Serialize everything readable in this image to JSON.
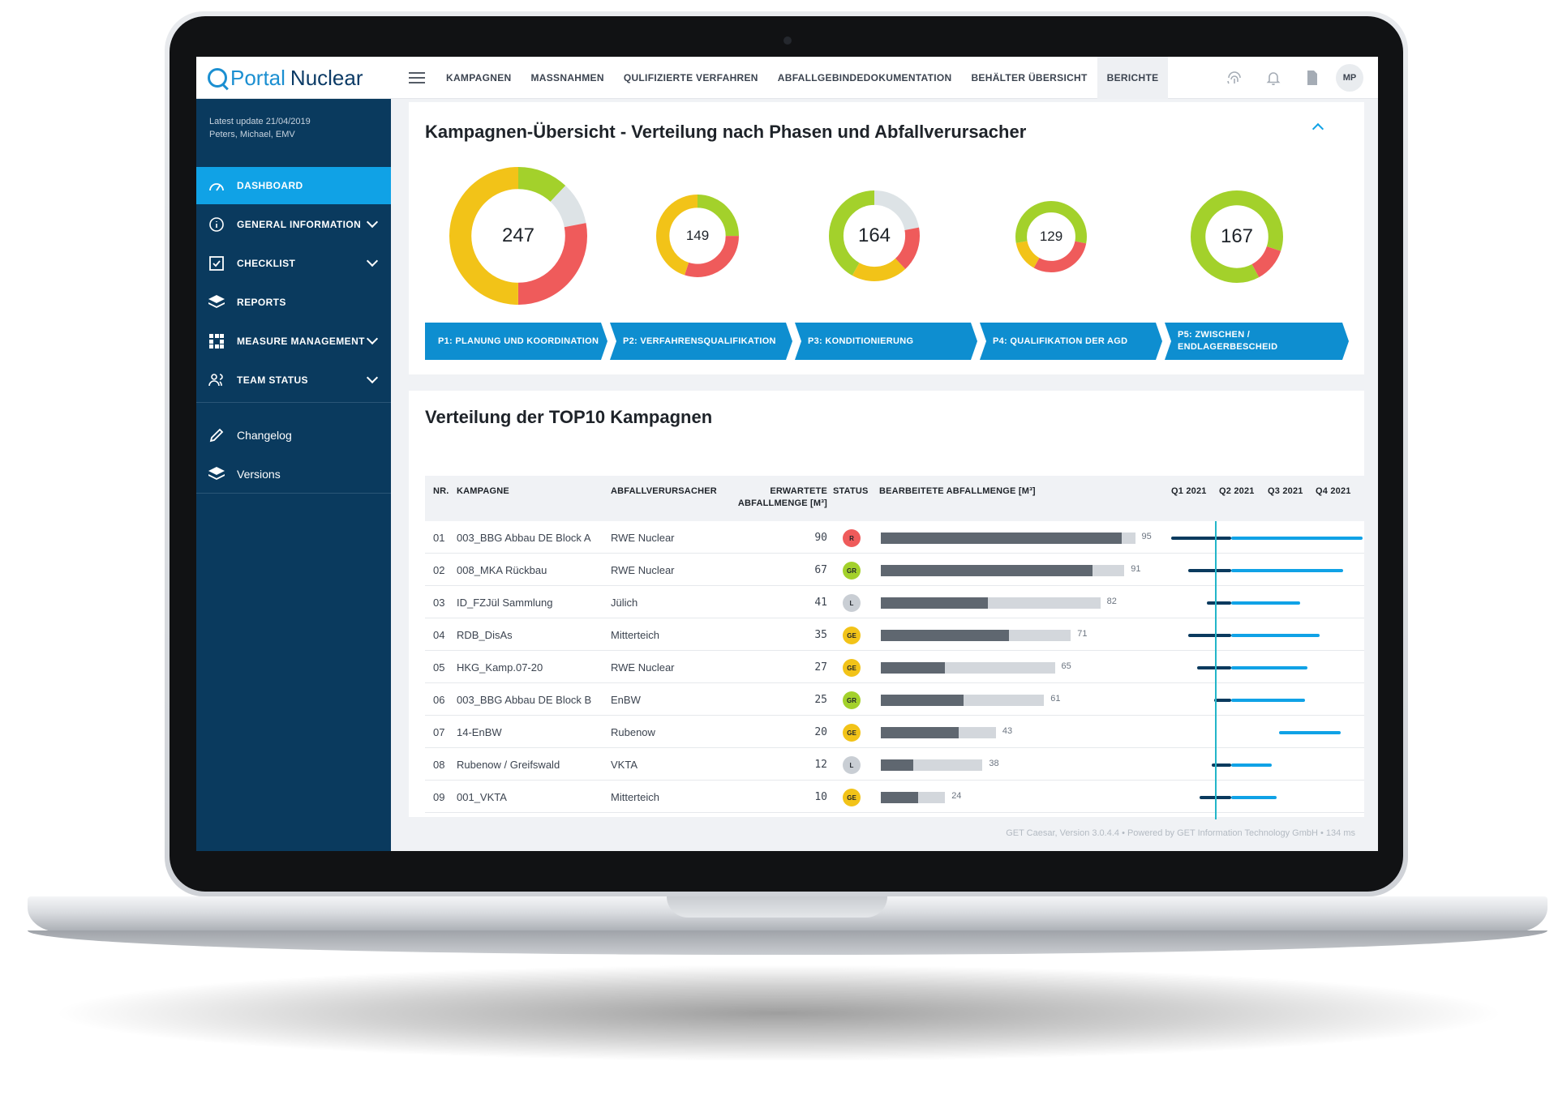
{
  "app": {
    "logo_a": "Portal",
    "logo_b": "Nuclear"
  },
  "nav": [
    {
      "label": "KAMPAGNEN"
    },
    {
      "label": "MASSNAHMEN"
    },
    {
      "label": "QULIFIZIERTE VERFAHREN"
    },
    {
      "label": "ABFALLGEBINDEDOKUMENTATION"
    },
    {
      "label": "BEHÄLTER ÜBERSICHT"
    },
    {
      "label": "BERICHTE"
    }
  ],
  "user": {
    "initials": "MP"
  },
  "sidebar": {
    "update_line": "Latest update 21/04/2019",
    "user_line": "Peters, Michael, EMV",
    "items": [
      {
        "label": "DASHBOARD",
        "icon": "gauge-icon"
      },
      {
        "label": "GENERAL INFORMATION",
        "icon": "info-icon"
      },
      {
        "label": "CHECKLIST",
        "icon": "checkbox-icon"
      },
      {
        "label": "REPORTS",
        "icon": "layers-icon"
      },
      {
        "label": "MEASURE MANAGEMENT",
        "icon": "grid-icon"
      },
      {
        "label": "TEAM STATUS",
        "icon": "team-icon"
      }
    ],
    "links": [
      {
        "label": "Changelog",
        "icon": "pencil-icon"
      },
      {
        "label": "Versions",
        "icon": "layers-icon"
      }
    ]
  },
  "overview": {
    "title": "Kampagnen-Übersicht - Verteilung nach Phasen und Abfallverursacher",
    "donuts": [
      {
        "total": "247",
        "segments": [
          {
            "value": 0.12,
            "color": "#a3d12b"
          },
          {
            "value": 0.1,
            "color": "#dde3e6"
          },
          {
            "value": 0.28,
            "color": "#ef5b5b"
          },
          {
            "value": 0.5,
            "color": "#f2c318"
          }
        ]
      },
      {
        "total": "149",
        "segments": [
          {
            "value": 0.25,
            "color": "#a3d12b"
          },
          {
            "value": 0.3,
            "color": "#ef5b5b"
          },
          {
            "value": 0.45,
            "color": "#f2c318"
          }
        ]
      },
      {
        "total": "164",
        "segments": [
          {
            "value": 0.22,
            "color": "#dde3e6"
          },
          {
            "value": 0.16,
            "color": "#ef5b5b"
          },
          {
            "value": 0.2,
            "color": "#f2c318"
          },
          {
            "value": 0.42,
            "color": "#a3d12b"
          }
        ]
      },
      {
        "total": "129",
        "segments": [
          {
            "value": 0.28,
            "color": "#a3d12b"
          },
          {
            "value": 0.3,
            "color": "#ef5b5b"
          },
          {
            "value": 0.14,
            "color": "#f2c318"
          },
          {
            "value": 0.28,
            "color": "#a3d12b"
          }
        ]
      },
      {
        "total": "167",
        "segments": [
          {
            "value": 0.3,
            "color": "#a3d12b"
          },
          {
            "value": 0.12,
            "color": "#ef5b5b"
          },
          {
            "value": 0.58,
            "color": "#a3d12b"
          }
        ]
      }
    ],
    "phases": [
      {
        "label": "P1: PLANUNG UND KOORDINATION"
      },
      {
        "label": "P2:  VERFAHRENSQUALIFIKATION"
      },
      {
        "label": "P3: KONDITIONIERUNG"
      },
      {
        "label": "P4: QUALIFIKATION DER AGD"
      },
      {
        "label": "P5: ZWISCHEN / ENDLAGERBESCHEID"
      }
    ],
    "phase_color": "#0e8ed0"
  },
  "top10": {
    "title": "Verteilung der TOP10 Kampagnen",
    "headers": {
      "nr": "NR.",
      "kampagne": "KAMPAGNE",
      "verursacher": "ABFALLVERURSACHER",
      "erwartet": "ERWARTETE ABFALLMENGE [M³]",
      "status": "STATUS",
      "bearbeitet": "BEARBEITETE ABFALLMENGE [M³]",
      "q1": "Q1 2021",
      "q2": "Q2 2021",
      "q3": "Q3 2021",
      "q4": "Q4 2021"
    },
    "status_colors": {
      "R": "#ef5b5b",
      "GR": "#a3d12b",
      "L": "#c9ced4",
      "GE": "#f2c318"
    },
    "bar_max": 100,
    "timeline_range": [
      0,
      4
    ],
    "today": 1.25,
    "rows": [
      {
        "nr": "01",
        "kampagne": "003_BBG Abbau DE Block A",
        "verursacher": "RWE Nuclear",
        "erwartet": "90",
        "status": "R",
        "done": 90,
        "total": 95,
        "total_label": "95",
        "tl_start": 0.0,
        "tl_split": 1.25,
        "tl_end": 4.0
      },
      {
        "nr": "02",
        "kampagne": "008_MKA Rückbau",
        "verursacher": "RWE Nuclear",
        "erwartet": "67",
        "status": "GR",
        "done": 79,
        "total": 91,
        "total_label": "91",
        "tl_start": 0.35,
        "tl_split": 1.25,
        "tl_end": 3.6
      },
      {
        "nr": "03",
        "kampagne": "ID_FZJül Sammlung",
        "verursacher": "Jülich",
        "erwartet": "41",
        "status": "L",
        "done": 40,
        "total": 82,
        "total_label": "82",
        "tl_start": 0.75,
        "tl_split": 1.25,
        "tl_end": 2.7
      },
      {
        "nr": "04",
        "kampagne": "RDB_DisAs",
        "verursacher": "Mitterteich",
        "erwartet": "35",
        "status": "GE",
        "done": 48,
        "total": 71,
        "total_label": "71",
        "tl_start": 0.35,
        "tl_split": 1.25,
        "tl_end": 3.1
      },
      {
        "nr": "05",
        "kampagne": "HKG_Kamp.07-20",
        "verursacher": "RWE Nuclear",
        "erwartet": "27",
        "status": "GE",
        "done": 24,
        "total": 65,
        "total_label": "65",
        "tl_start": 0.55,
        "tl_split": 1.25,
        "tl_end": 2.85
      },
      {
        "nr": "06",
        "kampagne": "003_BBG Abbau DE Block B",
        "verursacher": "EnBW",
        "erwartet": "25",
        "status": "GR",
        "done": 31,
        "total": 61,
        "total_label": "61",
        "tl_start": 0.9,
        "tl_split": 1.25,
        "tl_end": 2.8
      },
      {
        "nr": "07",
        "kampagne": "14-EnBW",
        "verursacher": "Rubenow",
        "erwartet": "20",
        "status": "GE",
        "done": 29,
        "total": 43,
        "total_label": "43",
        "tl_start": 2.25,
        "tl_split": 2.25,
        "tl_end": 3.55
      },
      {
        "nr": "08",
        "kampagne": "Rubenow / Greifswald",
        "verursacher": "VKTA",
        "erwartet": "12",
        "status": "L",
        "done": 12,
        "total": 38,
        "total_label": "38",
        "tl_start": 0.85,
        "tl_split": 1.25,
        "tl_end": 2.1
      },
      {
        "nr": "09",
        "kampagne": "001_VKTA",
        "verursacher": "Mitterteich",
        "erwartet": "10",
        "status": "GE",
        "done": 14,
        "total": 24,
        "total_label": "24",
        "tl_start": 0.6,
        "tl_split": 1.25,
        "tl_end": 2.2
      }
    ]
  },
  "footer": "GET Caesar, Version 3.0.4.4  •  Powered by GET Information Technology GmbH  •  134 ms"
}
